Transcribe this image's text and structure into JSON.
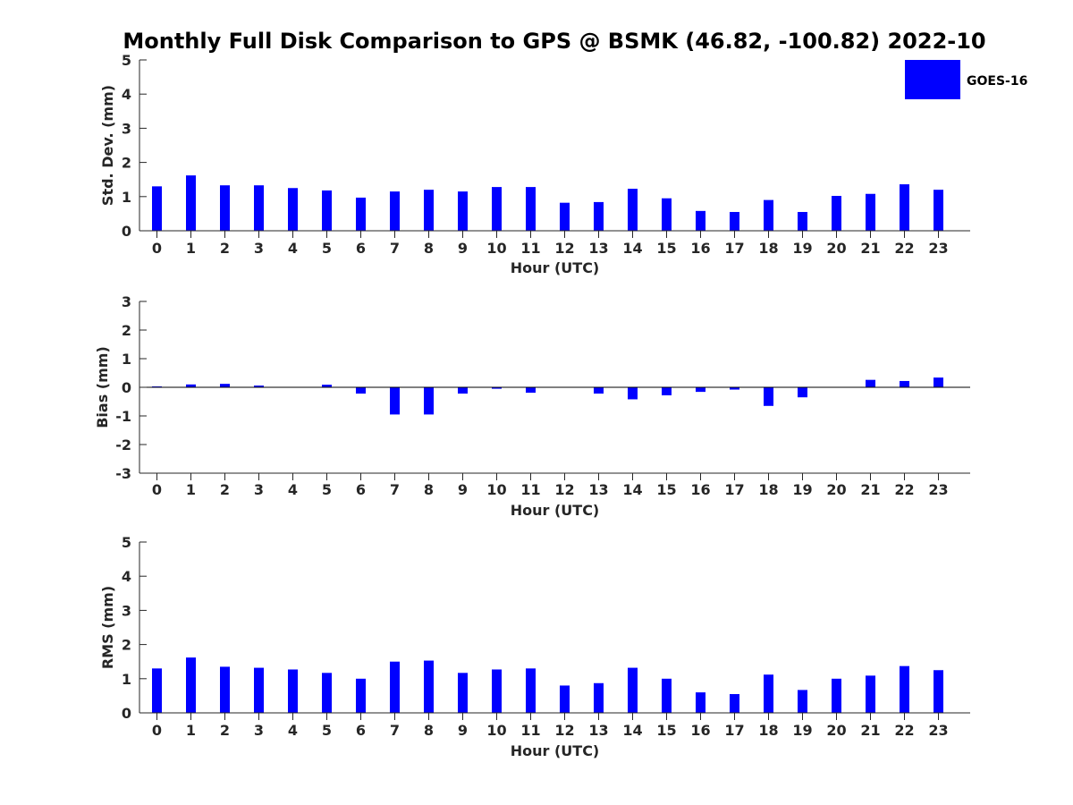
{
  "title": "Monthly Full Disk Comparison to GPS @ BSMK (46.82, -100.82) 2022-10",
  "legend": {
    "label": "GOES-16",
    "color": "#0000ff"
  },
  "chart_data": [
    {
      "type": "bar",
      "xlabel": "Hour (UTC)",
      "ylabel": "Std. Dev. (mm)",
      "ylim": [
        0,
        5
      ],
      "yticks": [
        0,
        1,
        2,
        3,
        4,
        5
      ],
      "categories": [
        "0",
        "1",
        "2",
        "3",
        "4",
        "5",
        "6",
        "7",
        "8",
        "9",
        "10",
        "11",
        "12",
        "13",
        "14",
        "15",
        "16",
        "17",
        "18",
        "19",
        "20",
        "21",
        "22",
        "23"
      ],
      "series": [
        {
          "name": "GOES-16",
          "values": [
            1.3,
            1.62,
            1.33,
            1.33,
            1.25,
            1.18,
            0.97,
            1.15,
            1.2,
            1.15,
            1.28,
            1.28,
            0.82,
            0.84,
            1.23,
            0.95,
            0.58,
            0.55,
            0.9,
            0.55,
            1.02,
            1.08,
            1.36,
            1.2
          ]
        }
      ],
      "zero_line": false,
      "legend": true
    },
    {
      "type": "bar",
      "xlabel": "Hour (UTC)",
      "ylabel": "Bias (mm)",
      "ylim": [
        -3,
        3
      ],
      "yticks": [
        -3,
        -2,
        -1,
        0,
        1,
        2,
        3
      ],
      "categories": [
        "0",
        "1",
        "2",
        "3",
        "4",
        "5",
        "6",
        "7",
        "8",
        "9",
        "10",
        "11",
        "12",
        "13",
        "14",
        "15",
        "16",
        "17",
        "18",
        "19",
        "20",
        "21",
        "22",
        "23"
      ],
      "series": [
        {
          "name": "GOES-16",
          "values": [
            0.03,
            0.1,
            0.12,
            0.06,
            0.0,
            0.09,
            -0.22,
            -0.95,
            -0.95,
            -0.22,
            -0.05,
            -0.19,
            0.0,
            -0.22,
            -0.42,
            -0.28,
            -0.16,
            -0.08,
            -0.65,
            -0.35,
            0.0,
            0.26,
            0.22,
            0.34
          ]
        }
      ],
      "zero_line": true,
      "legend": false
    },
    {
      "type": "bar",
      "xlabel": "Hour (UTC)",
      "ylabel": "RMS (mm)",
      "ylim": [
        0,
        5
      ],
      "yticks": [
        0,
        1,
        2,
        3,
        4,
        5
      ],
      "categories": [
        "0",
        "1",
        "2",
        "3",
        "4",
        "5",
        "6",
        "7",
        "8",
        "9",
        "10",
        "11",
        "12",
        "13",
        "14",
        "15",
        "16",
        "17",
        "18",
        "19",
        "20",
        "21",
        "22",
        "23"
      ],
      "series": [
        {
          "name": "GOES-16",
          "values": [
            1.3,
            1.62,
            1.35,
            1.32,
            1.27,
            1.17,
            1.0,
            1.5,
            1.53,
            1.17,
            1.27,
            1.3,
            0.8,
            0.87,
            1.32,
            1.0,
            0.6,
            0.55,
            1.12,
            0.67,
            1.0,
            1.09,
            1.37,
            1.25
          ]
        }
      ],
      "zero_line": false,
      "legend": false
    }
  ]
}
